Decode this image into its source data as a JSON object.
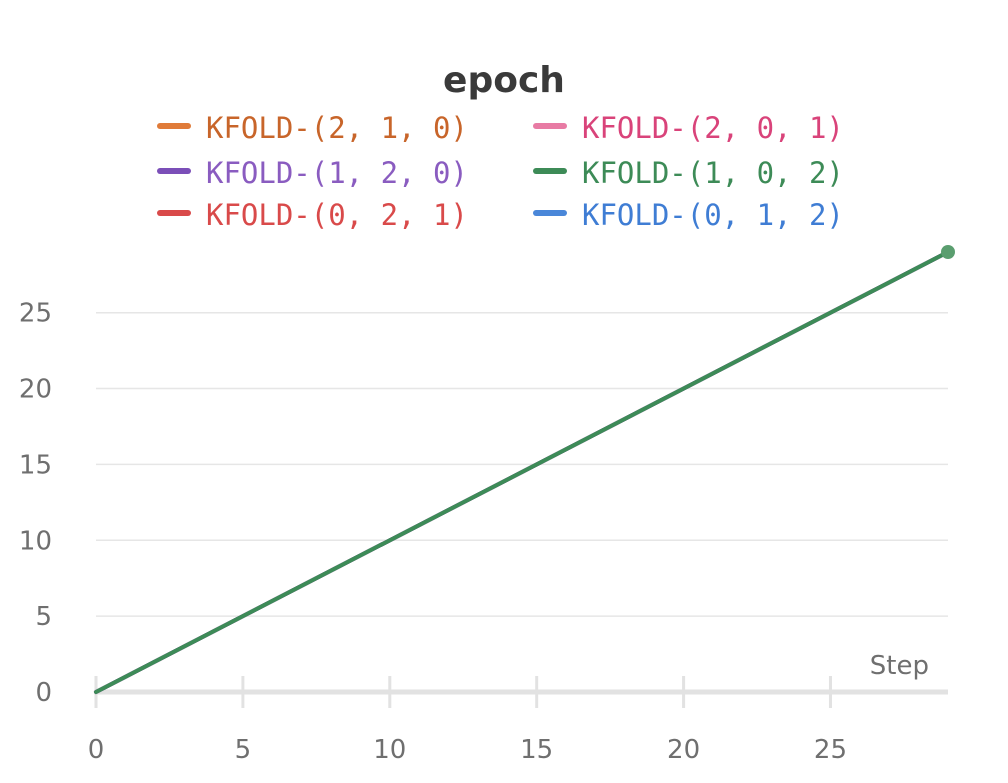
{
  "chart_data": {
    "type": "line",
    "title": "epoch",
    "xlabel": "Step",
    "ylabel": "",
    "xlim": [
      0,
      29
    ],
    "ylim": [
      0,
      29
    ],
    "x_ticks": [
      0,
      5,
      10,
      15,
      20,
      25
    ],
    "y_ticks": [
      0,
      5,
      10,
      15,
      20,
      25
    ],
    "grid": true,
    "legend_position": "top",
    "series": [
      {
        "name": "KFOLD-(2, 1, 0)",
        "color": "#e07b39",
        "text_color": "#c8652a",
        "x": [
          0,
          29
        ],
        "y": [
          0,
          29
        ]
      },
      {
        "name": "KFOLD-(2, 0, 1)",
        "color": "#e87ba4",
        "text_color": "#d9437a",
        "x": [
          0,
          29
        ],
        "y": [
          0,
          29
        ]
      },
      {
        "name": "KFOLD-(1, 2, 0)",
        "color": "#7b4fb8",
        "text_color": "#8a5cc0",
        "x": [
          0,
          29
        ],
        "y": [
          0,
          29
        ]
      },
      {
        "name": "KFOLD-(1, 0, 2)",
        "color": "#3d8b57",
        "text_color": "#3d8b57",
        "x": [
          0,
          29
        ],
        "y": [
          0,
          29
        ]
      },
      {
        "name": "KFOLD-(0, 2, 1)",
        "color": "#d94a4a",
        "text_color": "#d94a4a",
        "x": [
          0,
          29
        ],
        "y": [
          0,
          29
        ]
      },
      {
        "name": "KFOLD-(0, 1, 2)",
        "color": "#4a87d9",
        "text_color": "#3f7dd4",
        "x": [
          0,
          29
        ],
        "y": [
          0,
          29
        ]
      }
    ]
  }
}
